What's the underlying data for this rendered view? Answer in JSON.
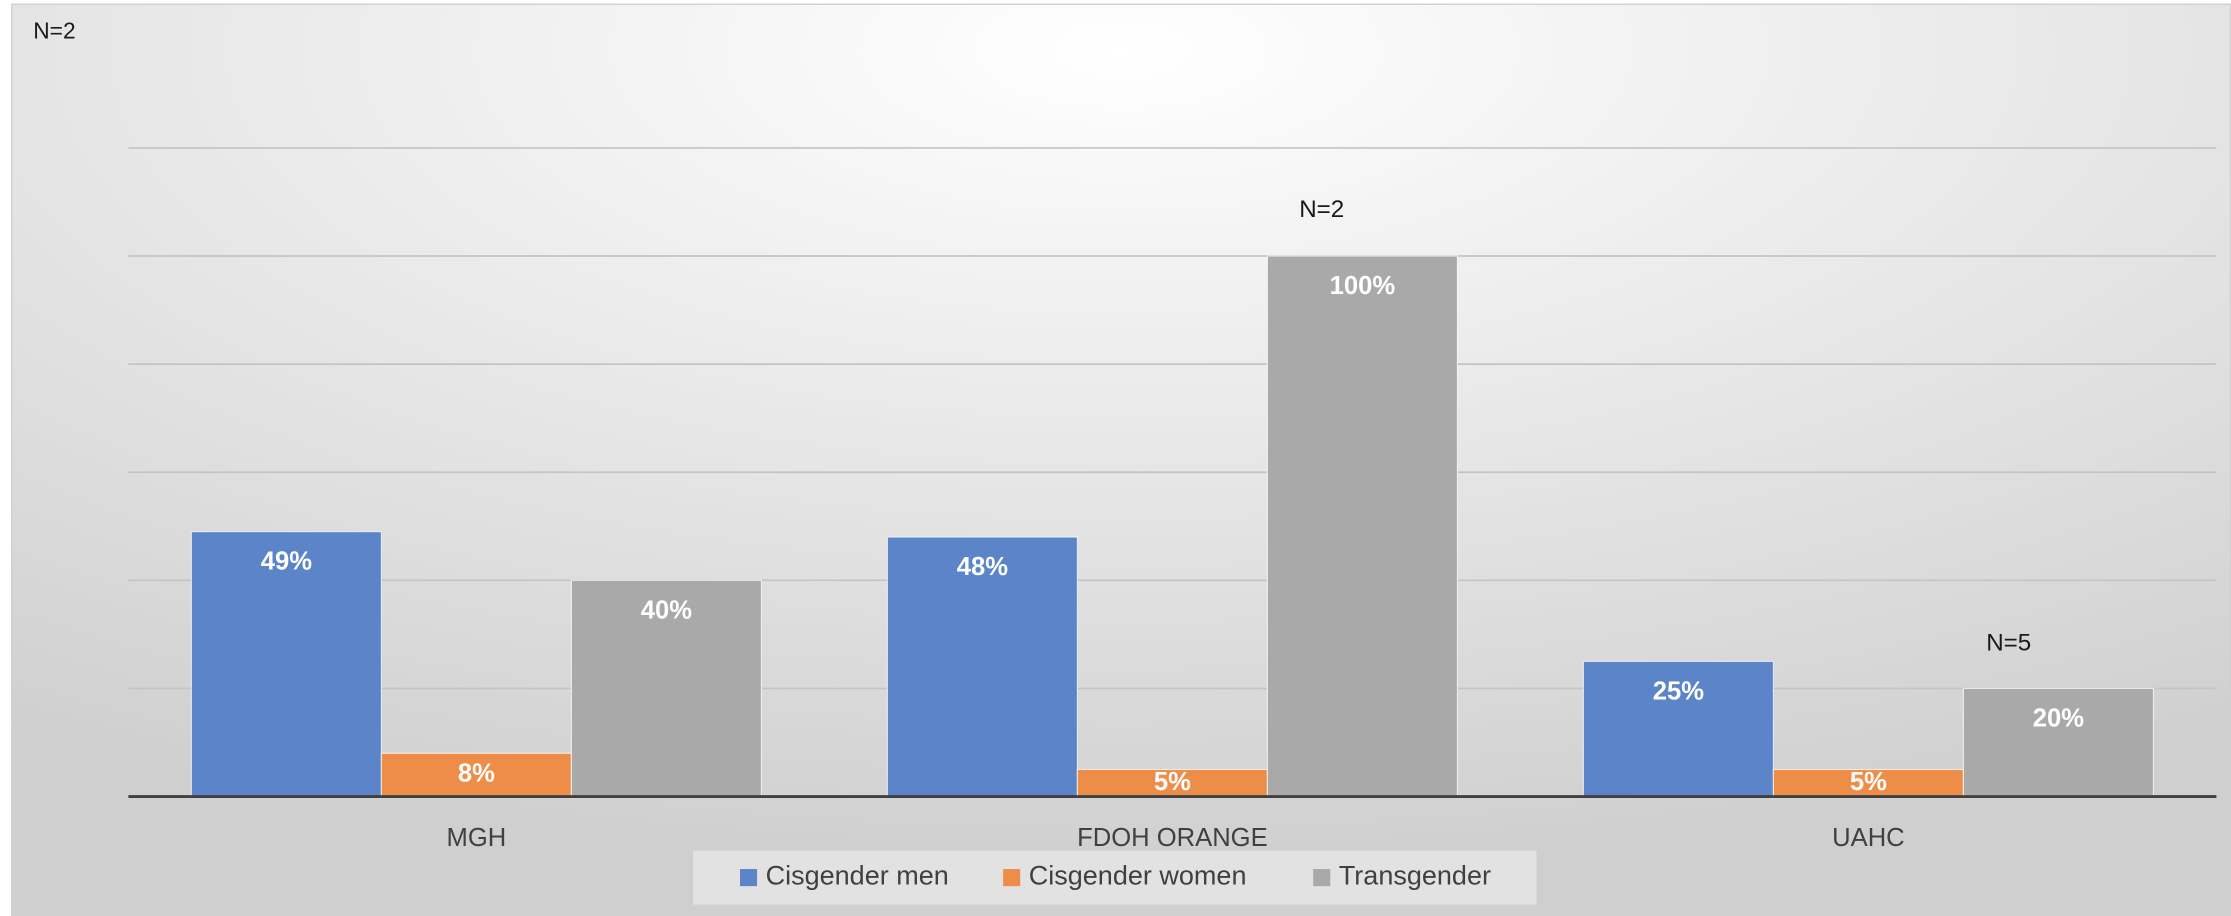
{
  "chart_data": {
    "type": "bar",
    "categories": [
      "MGH",
      "FDOH ORANGE",
      "UAHC"
    ],
    "series": [
      {
        "name": "Cisgender men",
        "color": "#5b84c9",
        "values": [
          49,
          48,
          25
        ],
        "value_labels": [
          "49%",
          "48%",
          "25%"
        ]
      },
      {
        "name": "Cisgender women",
        "color": "#ed8d47",
        "values": [
          8,
          5,
          5
        ],
        "value_labels": [
          "8%",
          "5%",
          "5%"
        ]
      },
      {
        "name": "Transgender",
        "color": "#a9a9a9",
        "values": [
          40,
          100,
          20
        ],
        "value_labels": [
          "40%",
          "100%",
          "20%"
        ]
      }
    ],
    "annotations": [
      "N=2",
      "N=2",
      "N=5"
    ],
    "ylim": [
      0,
      120
    ],
    "yticks": [
      0,
      20,
      40,
      60,
      80,
      100,
      120
    ],
    "grid": true,
    "legend": "bottom"
  }
}
